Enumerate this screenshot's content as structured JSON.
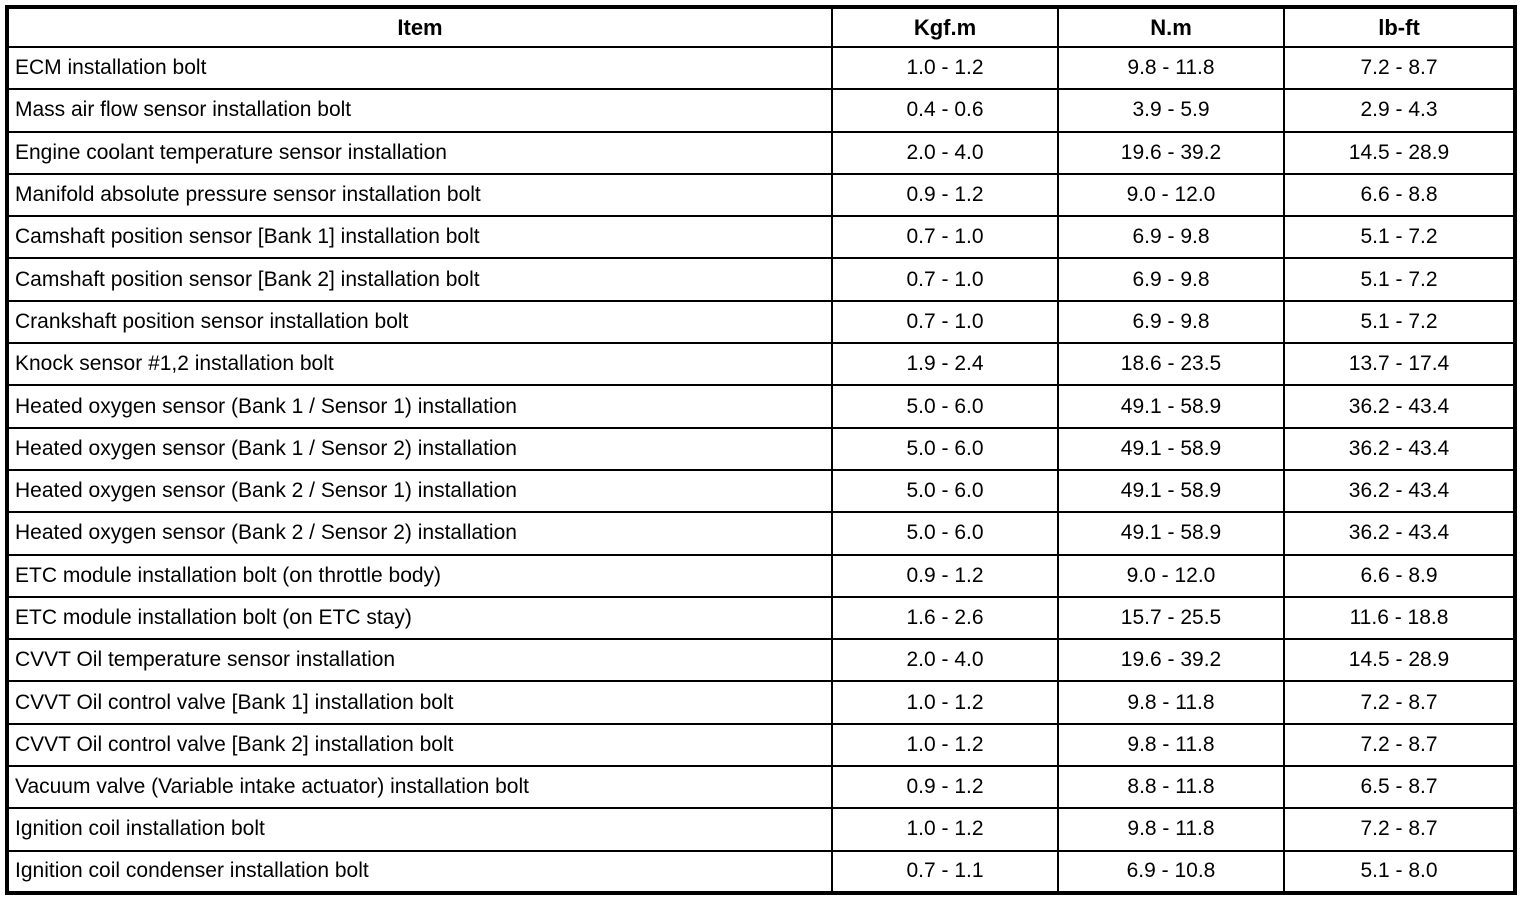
{
  "table": {
    "headers": [
      "Item",
      "Kgf.m",
      "N.m",
      "lb-ft"
    ],
    "rows": [
      [
        "ECM installation bolt",
        "1.0 - 1.2",
        "9.8 - 11.8",
        "7.2 - 8.7"
      ],
      [
        "Mass air flow sensor installation bolt",
        "0.4 - 0.6",
        "3.9 - 5.9",
        "2.9 - 4.3"
      ],
      [
        "Engine coolant temperature sensor installation",
        "2.0 - 4.0",
        "19.6 - 39.2",
        "14.5 - 28.9"
      ],
      [
        "Manifold absolute pressure sensor installation bolt",
        "0.9 - 1.2",
        "9.0 - 12.0",
        "6.6 - 8.8"
      ],
      [
        "Camshaft position sensor [Bank 1] installation bolt",
        "0.7 - 1.0",
        "6.9 - 9.8",
        "5.1 - 7.2"
      ],
      [
        "Camshaft position sensor [Bank 2] installation bolt",
        "0.7 - 1.0",
        "6.9 - 9.8",
        "5.1 - 7.2"
      ],
      [
        "Crankshaft position sensor installation bolt",
        "0.7 - 1.0",
        "6.9 - 9.8",
        "5.1 - 7.2"
      ],
      [
        "Knock sensor #1,2 installation bolt",
        "1.9 - 2.4",
        "18.6 - 23.5",
        "13.7 - 17.4"
      ],
      [
        "Heated oxygen sensor (Bank 1 / Sensor 1) installation",
        "5.0 - 6.0",
        "49.1 - 58.9",
        "36.2 - 43.4"
      ],
      [
        "Heated oxygen sensor (Bank 1 / Sensor 2) installation",
        "5.0 - 6.0",
        "49.1 - 58.9",
        "36.2 - 43.4"
      ],
      [
        "Heated oxygen sensor (Bank 2 / Sensor 1) installation",
        "5.0 - 6.0",
        "49.1 - 58.9",
        "36.2 - 43.4"
      ],
      [
        "Heated oxygen sensor (Bank 2 / Sensor 2) installation",
        "5.0 - 6.0",
        "49.1 - 58.9",
        "36.2 - 43.4"
      ],
      [
        "ETC module installation bolt (on throttle body)",
        "0.9 - 1.2",
        "9.0 - 12.0",
        "6.6 - 8.9"
      ],
      [
        "ETC module installation bolt (on ETC stay)",
        "1.6 - 2.6",
        "15.7 - 25.5",
        "11.6 - 18.8"
      ],
      [
        "CVVT Oil temperature sensor installation",
        "2.0 - 4.0",
        "19.6 - 39.2",
        "14.5 - 28.9"
      ],
      [
        "CVVT Oil control valve [Bank 1] installation bolt",
        "1.0 - 1.2",
        "9.8 - 11.8",
        "7.2 - 8.7"
      ],
      [
        "CVVT Oil control valve [Bank 2] installation bolt",
        "1.0 - 1.2",
        "9.8 - 11.8",
        "7.2 - 8.7"
      ],
      [
        "Vacuum valve (Variable intake actuator) installation bolt",
        "0.9 - 1.2",
        "8.8 - 11.8",
        "6.5 - 8.7"
      ],
      [
        "Ignition coil installation bolt",
        "1.0 - 1.2",
        "9.8 - 11.8",
        "7.2 - 8.7"
      ],
      [
        "Ignition coil condenser installation bolt",
        "0.7 - 1.1",
        "6.9 - 10.8",
        "5.1 - 8.0"
      ]
    ]
  },
  "colors": {
    "border": "#000000",
    "background": "#ffffff",
    "text": "#000000"
  }
}
